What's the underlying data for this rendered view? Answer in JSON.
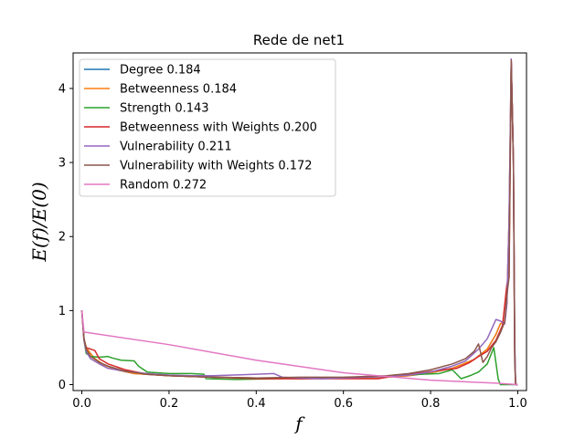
{
  "chart_data": {
    "type": "line",
    "title": "Rede de net1",
    "xlabel": "f",
    "ylabel": "E(f)/E(0)",
    "xlim": [
      -0.02,
      1.02
    ],
    "ylim": [
      -0.08,
      4.48
    ],
    "xticks": [
      "0.0",
      "0.2",
      "0.4",
      "0.6",
      "0.8",
      "1.0"
    ],
    "yticks": [
      "0",
      "1",
      "2",
      "3",
      "4"
    ],
    "legend_position": "upper-left",
    "grid": false,
    "series": [
      {
        "name": "Degree 0.184",
        "color": "#1f77b4",
        "points": [
          [
            0.0,
            1.0
          ],
          [
            0.005,
            0.62
          ],
          [
            0.01,
            0.5
          ],
          [
            0.02,
            0.42
          ],
          [
            0.03,
            0.35
          ],
          [
            0.05,
            0.27
          ],
          [
            0.08,
            0.2
          ],
          [
            0.12,
            0.15
          ],
          [
            0.2,
            0.12
          ],
          [
            0.3,
            0.1
          ],
          [
            0.4,
            0.09
          ],
          [
            0.5,
            0.08
          ],
          [
            0.6,
            0.09
          ],
          [
            0.7,
            0.1
          ],
          [
            0.75,
            0.12
          ],
          [
            0.8,
            0.16
          ],
          [
            0.85,
            0.22
          ],
          [
            0.9,
            0.34
          ],
          [
            0.93,
            0.48
          ],
          [
            0.95,
            0.68
          ],
          [
            0.96,
            0.82
          ],
          [
            0.97,
            0.86
          ],
          [
            0.975,
            1.1
          ],
          [
            0.98,
            2.2
          ],
          [
            0.985,
            4.35
          ],
          [
            0.99,
            3.0
          ],
          [
            0.993,
            0.5
          ],
          [
            0.995,
            0.0
          ],
          [
            1.0,
            0.0
          ]
        ]
      },
      {
        "name": "Betweenness 0.184",
        "color": "#ff7f0e",
        "points": [
          [
            0.0,
            1.0
          ],
          [
            0.005,
            0.62
          ],
          [
            0.01,
            0.5
          ],
          [
            0.02,
            0.42
          ],
          [
            0.03,
            0.35
          ],
          [
            0.05,
            0.27
          ],
          [
            0.08,
            0.2
          ],
          [
            0.12,
            0.15
          ],
          [
            0.2,
            0.12
          ],
          [
            0.3,
            0.1
          ],
          [
            0.4,
            0.09
          ],
          [
            0.5,
            0.08
          ],
          [
            0.6,
            0.09
          ],
          [
            0.7,
            0.1
          ],
          [
            0.75,
            0.12
          ],
          [
            0.8,
            0.16
          ],
          [
            0.85,
            0.22
          ],
          [
            0.9,
            0.34
          ],
          [
            0.93,
            0.48
          ],
          [
            0.95,
            0.68
          ],
          [
            0.96,
            0.82
          ],
          [
            0.97,
            0.86
          ],
          [
            0.975,
            1.1
          ],
          [
            0.98,
            2.2
          ],
          [
            0.985,
            4.35
          ],
          [
            0.99,
            3.0
          ],
          [
            0.993,
            0.5
          ],
          [
            0.995,
            0.0
          ],
          [
            1.0,
            0.0
          ]
        ]
      },
      {
        "name": "Strength 0.143",
        "color": "#2ca02c",
        "points": [
          [
            0.0,
            1.0
          ],
          [
            0.005,
            0.6
          ],
          [
            0.01,
            0.42
          ],
          [
            0.02,
            0.38
          ],
          [
            0.04,
            0.37
          ],
          [
            0.06,
            0.38
          ],
          [
            0.07,
            0.36
          ],
          [
            0.09,
            0.33
          ],
          [
            0.12,
            0.32
          ],
          [
            0.13,
            0.25
          ],
          [
            0.15,
            0.17
          ],
          [
            0.2,
            0.15
          ],
          [
            0.25,
            0.15
          ],
          [
            0.28,
            0.14
          ],
          [
            0.285,
            0.08
          ],
          [
            0.35,
            0.07
          ],
          [
            0.45,
            0.08
          ],
          [
            0.55,
            0.09
          ],
          [
            0.65,
            0.1
          ],
          [
            0.72,
            0.12
          ],
          [
            0.78,
            0.14
          ],
          [
            0.82,
            0.15
          ],
          [
            0.85,
            0.2
          ],
          [
            0.87,
            0.08
          ],
          [
            0.89,
            0.12
          ],
          [
            0.91,
            0.17
          ],
          [
            0.93,
            0.28
          ],
          [
            0.945,
            0.5
          ],
          [
            0.955,
            0.08
          ],
          [
            0.96,
            0.0
          ],
          [
            0.985,
            0.0
          ],
          [
            1.0,
            0.0
          ]
        ]
      },
      {
        "name": "Betweenness with Weights 0.200",
        "color": "#d62728",
        "points": [
          [
            0.0,
            1.0
          ],
          [
            0.005,
            0.6
          ],
          [
            0.01,
            0.5
          ],
          [
            0.02,
            0.48
          ],
          [
            0.03,
            0.46
          ],
          [
            0.04,
            0.35
          ],
          [
            0.06,
            0.28
          ],
          [
            0.1,
            0.2
          ],
          [
            0.15,
            0.14
          ],
          [
            0.2,
            0.12
          ],
          [
            0.3,
            0.1
          ],
          [
            0.4,
            0.08
          ],
          [
            0.5,
            0.08
          ],
          [
            0.6,
            0.08
          ],
          [
            0.68,
            0.08
          ],
          [
            0.72,
            0.12
          ],
          [
            0.78,
            0.16
          ],
          [
            0.83,
            0.2
          ],
          [
            0.86,
            0.22
          ],
          [
            0.89,
            0.3
          ],
          [
            0.91,
            0.38
          ],
          [
            0.93,
            0.45
          ],
          [
            0.95,
            0.6
          ],
          [
            0.965,
            0.8
          ],
          [
            0.975,
            1.35
          ],
          [
            0.98,
            1.45
          ],
          [
            0.985,
            4.38
          ],
          [
            0.99,
            3.0
          ],
          [
            0.993,
            0.4
          ],
          [
            0.995,
            0.0
          ],
          [
            1.0,
            0.0
          ]
        ]
      },
      {
        "name": "Vulnerability 0.211",
        "color": "#9467bd",
        "points": [
          [
            0.0,
            1.0
          ],
          [
            0.005,
            0.6
          ],
          [
            0.01,
            0.45
          ],
          [
            0.02,
            0.35
          ],
          [
            0.04,
            0.28
          ],
          [
            0.06,
            0.22
          ],
          [
            0.1,
            0.18
          ],
          [
            0.15,
            0.15
          ],
          [
            0.2,
            0.13
          ],
          [
            0.25,
            0.12
          ],
          [
            0.3,
            0.12
          ],
          [
            0.35,
            0.13
          ],
          [
            0.4,
            0.14
          ],
          [
            0.44,
            0.15
          ],
          [
            0.46,
            0.1
          ],
          [
            0.5,
            0.09
          ],
          [
            0.55,
            0.08
          ],
          [
            0.6,
            0.09
          ],
          [
            0.65,
            0.1
          ],
          [
            0.7,
            0.11
          ],
          [
            0.75,
            0.13
          ],
          [
            0.8,
            0.17
          ],
          [
            0.85,
            0.25
          ],
          [
            0.88,
            0.32
          ],
          [
            0.91,
            0.48
          ],
          [
            0.93,
            0.62
          ],
          [
            0.95,
            0.88
          ],
          [
            0.96,
            0.86
          ],
          [
            0.97,
            0.82
          ],
          [
            0.975,
            1.1
          ],
          [
            0.98,
            2.2
          ],
          [
            0.985,
            4.4
          ],
          [
            0.99,
            3.0
          ],
          [
            0.993,
            0.6
          ],
          [
            0.995,
            0.0
          ],
          [
            1.0,
            0.0
          ]
        ]
      },
      {
        "name": "Vulnerability with Weights 0.172",
        "color": "#8c564b",
        "points": [
          [
            0.0,
            1.0
          ],
          [
            0.005,
            0.62
          ],
          [
            0.01,
            0.48
          ],
          [
            0.02,
            0.38
          ],
          [
            0.04,
            0.3
          ],
          [
            0.06,
            0.25
          ],
          [
            0.1,
            0.18
          ],
          [
            0.15,
            0.14
          ],
          [
            0.2,
            0.12
          ],
          [
            0.3,
            0.1
          ],
          [
            0.4,
            0.09
          ],
          [
            0.5,
            0.1
          ],
          [
            0.6,
            0.1
          ],
          [
            0.7,
            0.12
          ],
          [
            0.75,
            0.15
          ],
          [
            0.8,
            0.2
          ],
          [
            0.85,
            0.28
          ],
          [
            0.88,
            0.35
          ],
          [
            0.9,
            0.45
          ],
          [
            0.91,
            0.55
          ],
          [
            0.92,
            0.3
          ],
          [
            0.93,
            0.38
          ],
          [
            0.94,
            0.5
          ],
          [
            0.95,
            0.58
          ],
          [
            0.96,
            0.7
          ],
          [
            0.97,
            0.85
          ],
          [
            0.975,
            1.2
          ],
          [
            0.98,
            1.45
          ],
          [
            0.985,
            4.38
          ],
          [
            0.99,
            3.0
          ],
          [
            0.993,
            0.3
          ],
          [
            0.995,
            0.0
          ],
          [
            1.0,
            0.0
          ]
        ]
      },
      {
        "name": "Random 0.272",
        "color": "#e377c2",
        "points": [
          [
            0.0,
            1.0
          ],
          [
            0.005,
            0.71
          ],
          [
            0.2,
            0.54
          ],
          [
            0.4,
            0.33
          ],
          [
            0.6,
            0.16
          ],
          [
            0.8,
            0.06
          ],
          [
            0.95,
            0.02
          ],
          [
            1.0,
            0.0
          ]
        ]
      }
    ]
  }
}
